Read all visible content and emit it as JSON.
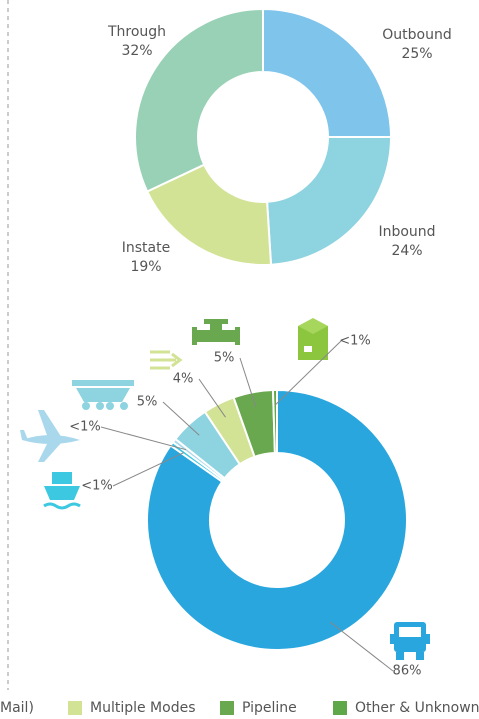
{
  "chart_data": [
    {
      "type": "donut",
      "categories": [
        "Outbound",
        "Inbound",
        "Instate",
        "Through"
      ],
      "values": [
        25,
        24,
        19,
        32
      ],
      "value_labels": [
        "25%",
        "24%",
        "19%",
        "32%"
      ],
      "colors": [
        "#7fc4ea",
        "#8dd3e0",
        "#d2e396",
        "#99d1b6"
      ]
    },
    {
      "type": "donut",
      "categories": [
        null,
        null,
        null,
        null,
        "Multiple Modes",
        "Pipeline",
        "Other & Unknown"
      ],
      "values": [
        86,
        0.5,
        0.5,
        5,
        4,
        5,
        0.5
      ],
      "value_labels": [
        "86%",
        "<1%",
        "<1%",
        "5%",
        "4%",
        "5%",
        "<1%"
      ],
      "colors": [
        "#2aa6df",
        "#3cc8e0",
        "#a9d8ec",
        "#8dd3e0",
        "#d2e396",
        "#6aa84f",
        "#5fa84a"
      ],
      "legend_partial": "Mail)"
    }
  ]
}
